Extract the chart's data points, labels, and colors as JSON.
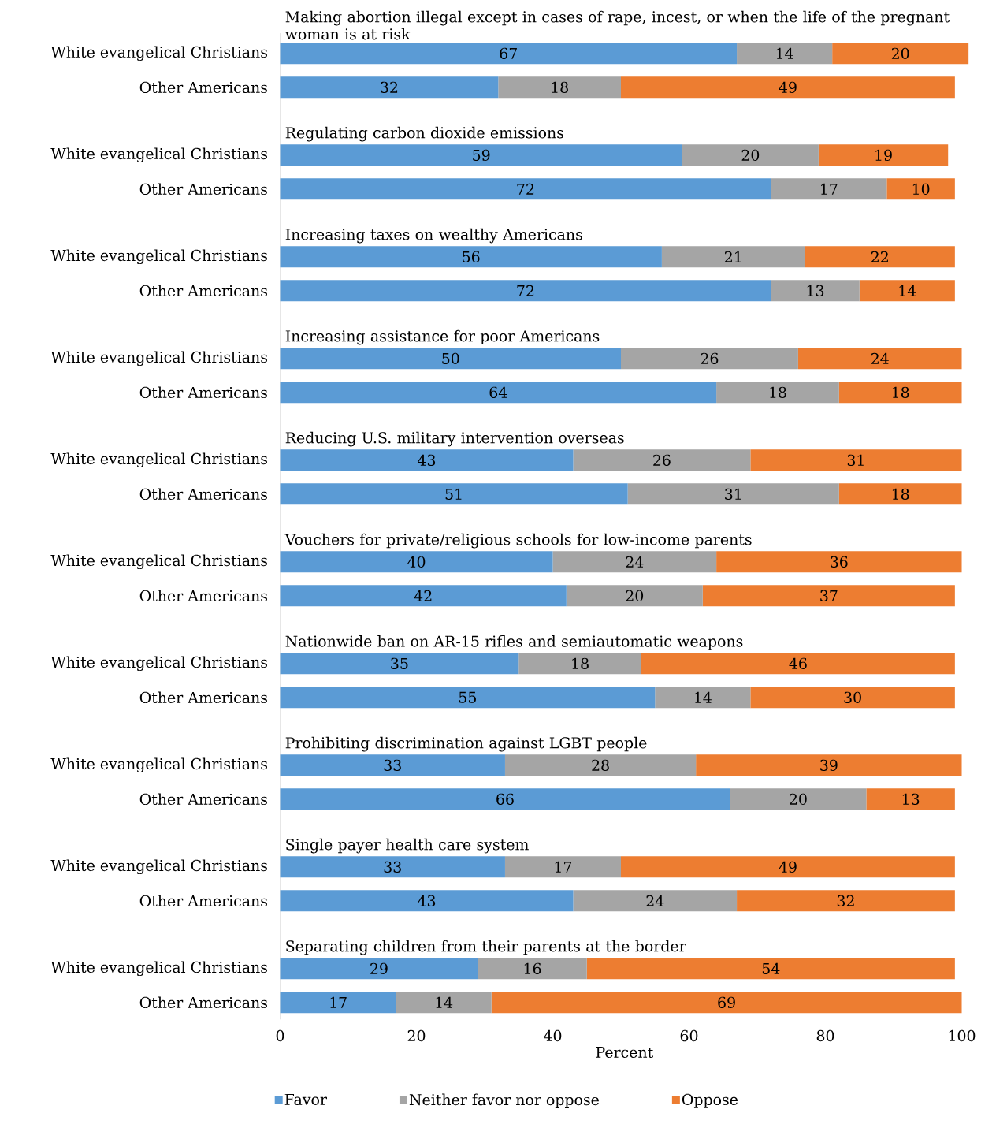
{
  "chart_data": {
    "type": "bar",
    "orientation": "horizontal",
    "stacked": true,
    "categories": [
      "White evangelical Christians",
      "Other Americans",
      "White evangelical Christians",
      "Other Americans",
      "White evangelical Christians",
      "Other Americans",
      "White evangelical Christians",
      "Other Americans",
      "White evangelical Christians",
      "Other Americans",
      "White evangelical Christians",
      "Other Americans",
      "White evangelical Christians",
      "Other Americans",
      "White evangelical Christians",
      "Other Americans",
      "White evangelical Christians",
      "Other Americans",
      "White evangelical Christians",
      "Other Americans"
    ],
    "series": [
      {
        "name": "Favor",
        "color": "#5b9bd5",
        "values": [
          67,
          32,
          59,
          72,
          56,
          72,
          50,
          64,
          43,
          51,
          40,
          42,
          35,
          55,
          33,
          66,
          33,
          43,
          29,
          17
        ]
      },
      {
        "name": "Neither favor nor oppose",
        "color": "#a5a5a5",
        "values": [
          14,
          18,
          20,
          17,
          21,
          13,
          26,
          18,
          26,
          31,
          24,
          20,
          18,
          14,
          28,
          20,
          17,
          24,
          16,
          14
        ]
      },
      {
        "name": "Oppose",
        "color": "#ed7d31",
        "values": [
          20,
          49,
          19,
          10,
          22,
          14,
          24,
          18,
          31,
          18,
          36,
          37,
          46,
          30,
          39,
          13,
          49,
          32,
          54,
          69
        ]
      }
    ],
    "annotations": [
      "Making abortion illegal except in cases of rape, incest, or when the life of the pregnant woman is at risk",
      "Regulating carbon dioxide emissions",
      "Increasing taxes on wealthy Americans",
      "Increasing assistance for poor Americans",
      "Reducing U.S. military intervention overseas",
      "Vouchers for private/religious schools for low-income parents",
      "Nationwide ban on AR-15 rifles and semiautomatic weapons",
      "Prohibiting discrimination against LGBT people",
      "Single payer health care system",
      "Separating children from their parents at the border"
    ],
    "xlabel": "Percent",
    "xlim": [
      0,
      101
    ],
    "xticks": [
      0,
      20,
      40,
      60,
      80,
      100
    ],
    "data_labels": true,
    "legend": "bottom"
  }
}
